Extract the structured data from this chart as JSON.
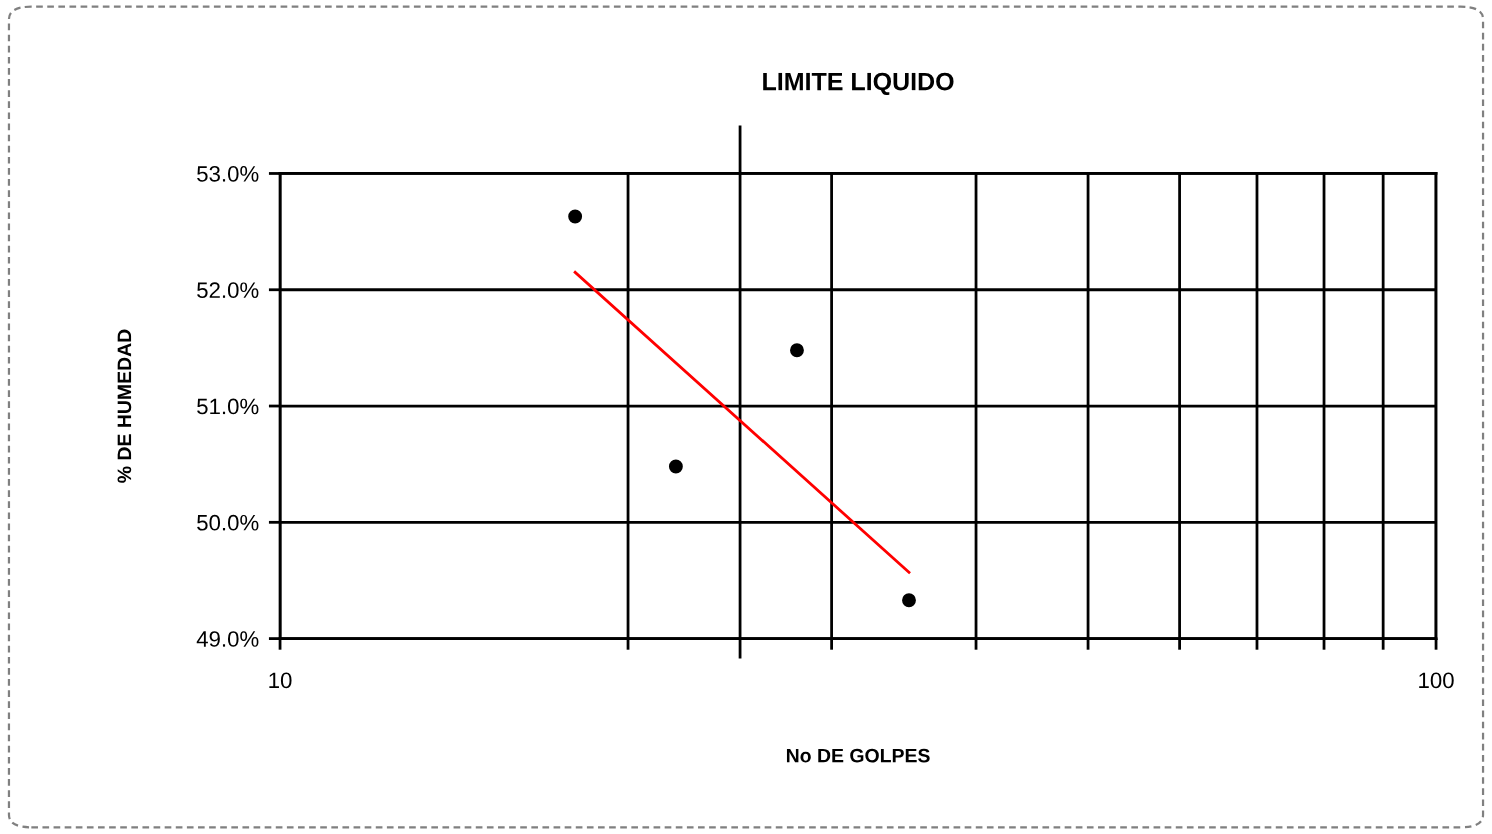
{
  "chart_data": {
    "type": "scatter",
    "title": "LIMITE LIQUIDO",
    "xlabel": "No DE GOLPES",
    "ylabel": "% DE HUMEDAD",
    "x": [
      18,
      22,
      28,
      35
    ],
    "series": [
      {
        "color": "#000000",
        "marker": "circle",
        "values": [
          52.63,
          50.48,
          51.48,
          49.33
        ]
      },
      {
        "type": "line",
        "color": "#ff0000",
        "marker": "none",
        "line_style": "solid",
        "x": [
          18,
          35
        ],
        "values": [
          52.15,
          49.57
        ]
      }
    ],
    "log": "x",
    "xlim": [
      10,
      100
    ],
    "xticks": [
      10,
      {
        "value": 20,
        "label": null
      },
      {
        "value": 30,
        "label": null
      },
      {
        "value": 40,
        "label": null
      },
      {
        "value": 50,
        "label": null
      },
      {
        "value": 60,
        "label": null
      },
      {
        "value": 70,
        "label": null
      },
      {
        "value": 80,
        "label": null
      },
      {
        "value": 90,
        "label": null
      },
      100
    ],
    "ylim": [
      49,
      53
    ],
    "yticks": [
      {
        "value": 49,
        "label": "49.0%"
      },
      {
        "value": 50,
        "label": "50.0%"
      },
      {
        "value": 51,
        "label": "51.0%"
      },
      {
        "value": 52,
        "label": "52.0%"
      },
      {
        "value": 53,
        "label": "53.0%"
      }
    ],
    "grid": true,
    "legend": false,
    "ref_lines": [
      {
        "axis": "x",
        "value": 25,
        "color": "#000000",
        "line_style": "solid"
      }
    ]
  }
}
